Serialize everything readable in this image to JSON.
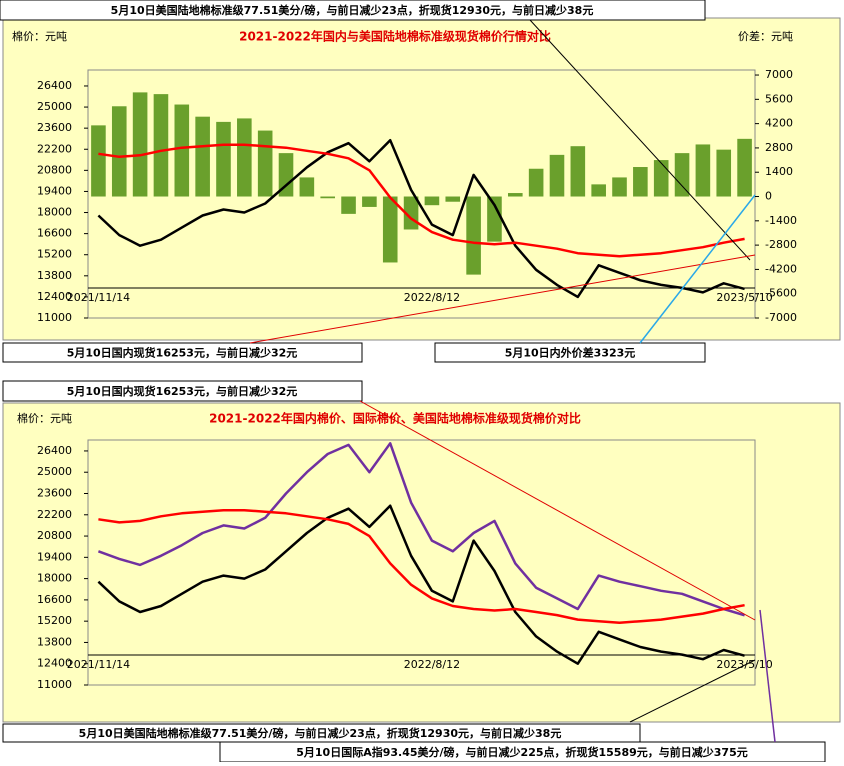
{
  "chart_data": [
    {
      "type": "line",
      "title": "2021-2022年国内与美国陆地棉标准级现货棉价行情对比",
      "y_label": "棉价：元吨",
      "y2_label": "价差：元吨",
      "categories": [
        "2021/11/14",
        null,
        null,
        null,
        null,
        null,
        null,
        null,
        null,
        null,
        null,
        null,
        null,
        null,
        null,
        null,
        "2022/8/12",
        null,
        null,
        null,
        null,
        null,
        null,
        null,
        null,
        null,
        null,
        null,
        null,
        null,
        null,
        "2023/5/10"
      ],
      "ylim": [
        11000,
        27460
      ],
      "yticks": [
        11000,
        12400,
        13800,
        15200,
        16600,
        18000,
        19400,
        20800,
        22200,
        23600,
        25000,
        26400
      ],
      "y2lim": [
        -7000,
        7290
      ],
      "y2ticks": [
        -7000,
        -5600,
        -4200,
        -2800,
        -1400,
        0,
        1400,
        2800,
        4200,
        5600,
        7000
      ],
      "series": [
        {
          "type": "bar",
          "axis": "y2",
          "color": "#6aa02c",
          "values": [
            4100,
            5200,
            6000,
            5900,
            5300,
            4600,
            4300,
            4500,
            3800,
            2500,
            1100,
            -100,
            -1000,
            -600,
            -3800,
            -1900,
            -500,
            -300,
            -4500,
            -2600,
            200,
            1600,
            2400,
            2900,
            700,
            1100,
            1700,
            2100,
            2500,
            3000,
            2700,
            3323
          ]
        },
        {
          "type": "line",
          "color": "#000000",
          "values": [
            17800,
            16500,
            15800,
            16200,
            17000,
            17800,
            18200,
            18000,
            18600,
            19800,
            21000,
            22000,
            22600,
            21400,
            22800,
            19500,
            17200,
            16500,
            20500,
            18500,
            15800,
            14200,
            13200,
            12400,
            14500,
            14000,
            13500,
            13200,
            13000,
            12700,
            13300,
            12930
          ]
        },
        {
          "type": "line",
          "color": "#ff0000",
          "values": [
            21900,
            21700,
            21800,
            22100,
            22300,
            22400,
            22500,
            22500,
            22400,
            22300,
            22100,
            21900,
            21600,
            20800,
            19000,
            17600,
            16700,
            16200,
            16000,
            15900,
            16000,
            15800,
            15600,
            15300,
            15200,
            15100,
            15200,
            15300,
            15500,
            15700,
            16000,
            16253
          ]
        }
      ],
      "annotations": [
        "5月10日美国陆地棉标准级77.51美分/磅，与前日减少23点，折现货12930元，与前日减少38元",
        "5月10日国内现货16253元，与前日减少32元",
        "5月10日内外价差3323元"
      ]
    },
    {
      "type": "line",
      "title": "2021-2022年国内棉价、国际棉价、美国陆地棉标准级现货棉价对比",
      "y_label": "棉价：元吨",
      "categories": [
        "2021/11/14",
        null,
        null,
        null,
        null,
        null,
        null,
        null,
        null,
        null,
        null,
        null,
        null,
        null,
        null,
        null,
        "2022/8/12",
        null,
        null,
        null,
        null,
        null,
        null,
        null,
        null,
        null,
        null,
        null,
        null,
        null,
        null,
        "2023/5/10"
      ],
      "ylim": [
        11000,
        27120
      ],
      "yticks": [
        11000,
        12400,
        13800,
        15200,
        16600,
        18000,
        19400,
        20800,
        22200,
        23600,
        25000,
        26400
      ],
      "series": [
        {
          "type": "line",
          "color": "#7030a0",
          "values": [
            19800,
            19300,
            18900,
            19500,
            20200,
            21000,
            21500,
            21300,
            22000,
            23600,
            25000,
            26200,
            26800,
            25000,
            26900,
            23000,
            20500,
            19800,
            21000,
            21800,
            19000,
            17400,
            16700,
            16000,
            18200,
            17800,
            17500,
            17200,
            17000,
            16500,
            16000,
            15589
          ]
        },
        {
          "type": "line",
          "color": "#000000",
          "values": [
            17800,
            16500,
            15800,
            16200,
            17000,
            17800,
            18200,
            18000,
            18600,
            19800,
            21000,
            22000,
            22600,
            21400,
            22800,
            19500,
            17200,
            16500,
            20500,
            18500,
            15800,
            14200,
            13200,
            12400,
            14500,
            14000,
            13500,
            13200,
            13000,
            12700,
            13300,
            12930
          ]
        },
        {
          "type": "line",
          "color": "#ff0000",
          "values": [
            21900,
            21700,
            21800,
            22100,
            22300,
            22400,
            22500,
            22500,
            22400,
            22300,
            22100,
            21900,
            21600,
            20800,
            19000,
            17600,
            16700,
            16200,
            16000,
            15900,
            16000,
            15800,
            15600,
            15300,
            15200,
            15100,
            15200,
            15300,
            15500,
            15700,
            16000,
            16253
          ]
        }
      ],
      "annotations": [
        "5月10日国内现货16253元，与前日减少32元",
        "5月10日美国陆地棉标准级77.51美分/磅，与前日减少23点，折现货12930元，与前日减少38元",
        "5月10日国际A指93.45美分/磅，与前日减少225点，折现货15589元，与前日减少375元"
      ]
    }
  ]
}
